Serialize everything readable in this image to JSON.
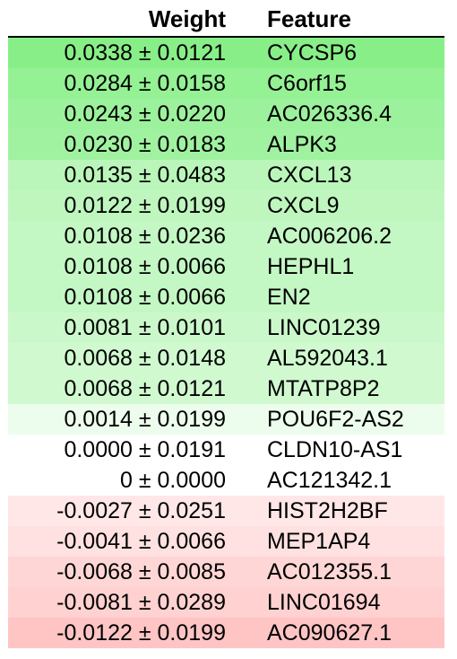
{
  "header": {
    "weight_label": "Weight",
    "feature_label": "Feature"
  },
  "rows": [
    {
      "weight": "0.0338 ± 0.0121",
      "feature": "CYCSP6",
      "color": "#88ef88"
    },
    {
      "weight": "0.0284 ± 0.0158",
      "feature": "C6orf15",
      "color": "#94f194"
    },
    {
      "weight": "0.0243 ± 0.0220",
      "feature": "AC026336.4",
      "color": "#9cf29c"
    },
    {
      "weight": "0.0230 ± 0.0183",
      "feature": "ALPK3",
      "color": "#a0f2a0"
    },
    {
      "weight": "0.0135 ± 0.0483",
      "feature": "CXCL13",
      "color": "#baf6ba"
    },
    {
      "weight": "0.0122 ± 0.0199",
      "feature": "CXCL9",
      "color": "#bef6be"
    },
    {
      "weight": "0.0108 ± 0.0236",
      "feature": "AC006206.2",
      "color": "#c3f7c3"
    },
    {
      "weight": "0.0108 ± 0.0066",
      "feature": "HEPHL1",
      "color": "#c3f7c3"
    },
    {
      "weight": "0.0108 ± 0.0066",
      "feature": "EN2",
      "color": "#c3f7c3"
    },
    {
      "weight": "0.0081 ± 0.0101",
      "feature": "LINC01239",
      "color": "#cbf8cb"
    },
    {
      "weight": "0.0068 ± 0.0148",
      "feature": "AL592043.1",
      "color": "#d0f9d0"
    },
    {
      "weight": "0.0068 ± 0.0121",
      "feature": "MTATP8P2",
      "color": "#d0f9d0"
    },
    {
      "weight": "0.0014 ± 0.0199",
      "feature": "POU6F2-AS2",
      "color": "#edfded"
    },
    {
      "weight": "0.0000 ± 0.0191",
      "feature": "CLDN10-AS1",
      "color": "#ffffff"
    },
    {
      "weight": "0 ± 0.0000",
      "feature": "AC121342.1",
      "color": "#ffffff"
    },
    {
      "weight": "-0.0027 ± 0.0251",
      "feature": "HIST2H2BF",
      "color": "#ffe7e7"
    },
    {
      "weight": "-0.0041 ± 0.0066",
      "feature": "MEP1AP4",
      "color": "#ffe1e1"
    },
    {
      "weight": "-0.0068 ± 0.0085",
      "feature": "AC012355.1",
      "color": "#ffd6d6"
    },
    {
      "weight": "-0.0081 ± 0.0289",
      "feature": "LINC01694",
      "color": "#ffd1d1"
    },
    {
      "weight": "-0.0122 ± 0.0199",
      "feature": "AC090627.1",
      "color": "#ffc4c4"
    }
  ]
}
